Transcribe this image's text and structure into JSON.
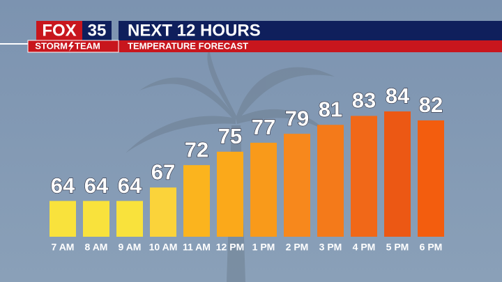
{
  "branding": {
    "logo_left": "FOX",
    "logo_right": "35",
    "team_left": "STORM",
    "team_right": "TEAM"
  },
  "chart_data": {
    "type": "bar",
    "title": "NEXT 12 HOURS",
    "subtitle": "TEMPERATURE FORECAST",
    "categories": [
      "7 AM",
      "8 AM",
      "9 AM",
      "10 AM",
      "11 AM",
      "12 PM",
      "1 PM",
      "2 PM",
      "3 PM",
      "4 PM",
      "5 PM",
      "6 PM"
    ],
    "values": [
      64,
      64,
      64,
      67,
      72,
      75,
      77,
      79,
      81,
      83,
      84,
      82
    ],
    "colors": [
      "#f9e23c",
      "#f9e23c",
      "#f9e23c",
      "#fbd33a",
      "#fbb41e",
      "#fba91a",
      "#f99a1a",
      "#f7881c",
      "#f47a1a",
      "#f16818",
      "#ec5814",
      "#f35d0e"
    ],
    "ylim": [
      56,
      85
    ]
  }
}
